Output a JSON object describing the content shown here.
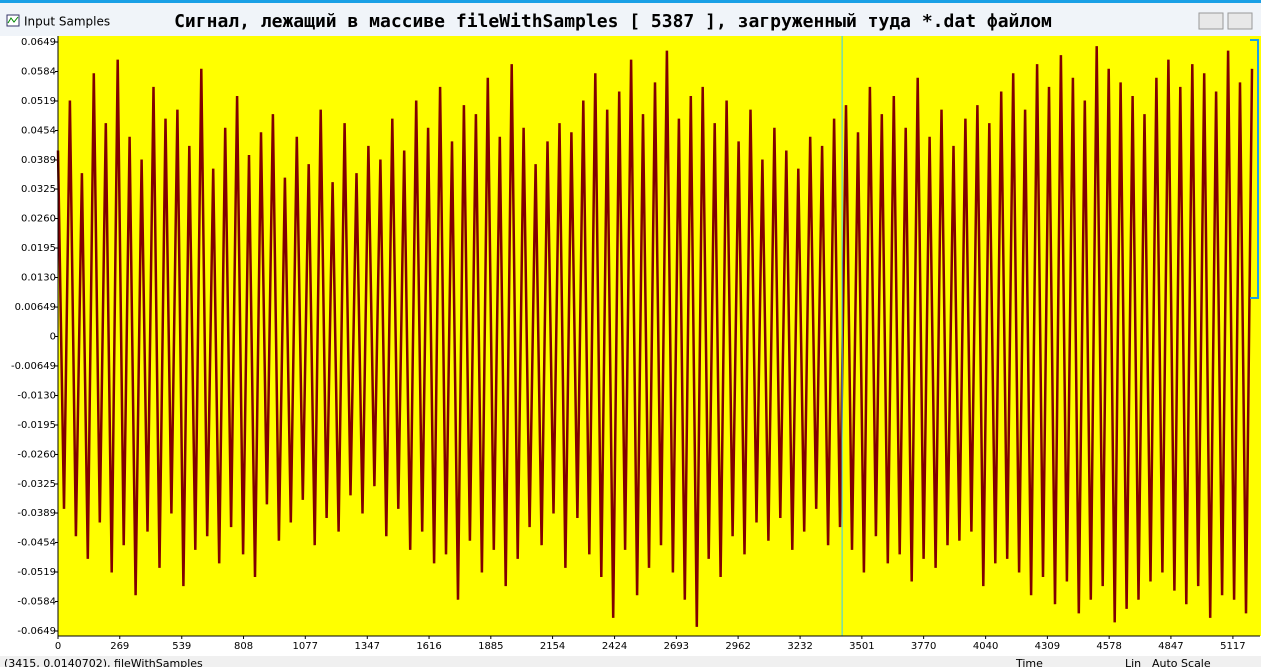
{
  "window": {
    "caption": "Input Samples"
  },
  "chart_data": {
    "type": "line",
    "title": "Сигнал, лежащий в массиве fileWithSamples [ 5387 ], загруженный туда *.dat файлом",
    "x": [
      0,
      26,
      52,
      78,
      104,
      130,
      156,
      182,
      208,
      234,
      260,
      286,
      312,
      338,
      364,
      390,
      416,
      442,
      468,
      494,
      520,
      546,
      572,
      598,
      624,
      650,
      676,
      702,
      728,
      754,
      780,
      806,
      832,
      858,
      884,
      910,
      936,
      962,
      988,
      1014,
      1040,
      1066,
      1092,
      1118,
      1144,
      1170,
      1196,
      1222,
      1248,
      1274,
      1300,
      1326,
      1352,
      1378,
      1404,
      1430,
      1456,
      1482,
      1508,
      1534,
      1560,
      1586,
      1612,
      1638,
      1664,
      1690,
      1716,
      1742,
      1768,
      1794,
      1820,
      1846,
      1872,
      1898,
      1924,
      1950,
      1976,
      2002,
      2028,
      2054,
      2080,
      2106,
      2132,
      2158,
      2184,
      2210,
      2236,
      2262,
      2288,
      2314,
      2340,
      2366,
      2392,
      2418,
      2444,
      2470,
      2496,
      2522,
      2548,
      2574,
      2600,
      2626,
      2652,
      2678,
      2704,
      2730,
      2756,
      2782,
      2808,
      2834,
      2860,
      2886,
      2912,
      2938,
      2964,
      2990,
      3016,
      3042,
      3068,
      3094,
      3120,
      3146,
      3172,
      3198,
      3224,
      3250,
      3276,
      3302,
      3328,
      3354,
      3380,
      3406,
      3432,
      3458,
      3484,
      3510,
      3536,
      3562,
      3588,
      3614,
      3640,
      3666,
      3692,
      3718,
      3744,
      3770,
      3796,
      3822,
      3848,
      3874,
      3900,
      3926,
      3952,
      3978,
      4004,
      4030,
      4056,
      4082,
      4108,
      4134,
      4160,
      4186,
      4212,
      4238,
      4264,
      4290,
      4316,
      4342,
      4368,
      4394,
      4420,
      4446,
      4472,
      4498,
      4524,
      4550,
      4576,
      4602,
      4628,
      4654,
      4680,
      4706,
      4732,
      4758,
      4784,
      4810,
      4836,
      4862,
      4888,
      4914,
      4940,
      4966,
      4992,
      5018,
      5044,
      5070,
      5096,
      5122,
      5148,
      5174,
      5200
    ],
    "series": [
      {
        "name": "fileWithSamples",
        "color": "#800000",
        "values": [
          0.041,
          -0.038,
          0.052,
          -0.044,
          0.036,
          -0.049,
          0.058,
          -0.041,
          0.047,
          -0.052,
          0.061,
          -0.046,
          0.044,
          -0.057,
          0.039,
          -0.043,
          0.055,
          -0.051,
          0.048,
          -0.039,
          0.05,
          -0.055,
          0.042,
          -0.047,
          0.059,
          -0.044,
          0.037,
          -0.05,
          0.046,
          -0.042,
          0.053,
          -0.048,
          0.04,
          -0.053,
          0.045,
          -0.037,
          0.049,
          -0.045,
          0.035,
          -0.041,
          0.044,
          -0.036,
          0.038,
          -0.046,
          0.05,
          -0.04,
          0.034,
          -0.043,
          0.047,
          -0.035,
          0.036,
          -0.039,
          0.042,
          -0.033,
          0.039,
          -0.044,
          0.048,
          -0.038,
          0.041,
          -0.047,
          0.052,
          -0.043,
          0.046,
          -0.05,
          0.055,
          -0.048,
          0.043,
          -0.058,
          0.051,
          -0.045,
          0.049,
          -0.052,
          0.057,
          -0.047,
          0.044,
          -0.055,
          0.06,
          -0.049,
          0.046,
          -0.042,
          0.038,
          -0.046,
          0.043,
          -0.039,
          0.047,
          -0.051,
          0.045,
          -0.04,
          0.052,
          -0.048,
          0.058,
          -0.053,
          0.05,
          -0.062,
          0.054,
          -0.047,
          0.061,
          -0.057,
          0.049,
          -0.051,
          0.056,
          -0.046,
          0.063,
          -0.052,
          0.048,
          -0.058,
          0.053,
          -0.064,
          0.055,
          -0.049,
          0.047,
          -0.053,
          0.052,
          -0.044,
          0.043,
          -0.048,
          0.05,
          -0.041,
          0.039,
          -0.045,
          0.046,
          -0.04,
          0.041,
          -0.047,
          0.037,
          -0.043,
          0.044,
          -0.038,
          0.042,
          -0.046,
          0.048,
          -0.042,
          0.051,
          -0.047,
          0.045,
          -0.052,
          0.055,
          -0.044,
          0.049,
          -0.05,
          0.053,
          -0.048,
          0.046,
          -0.054,
          0.057,
          -0.049,
          0.044,
          -0.051,
          0.05,
          -0.046,
          0.042,
          -0.045,
          0.048,
          -0.043,
          0.051,
          -0.055,
          0.047,
          -0.05,
          0.054,
          -0.049,
          0.058,
          -0.052,
          0.05,
          -0.057,
          0.06,
          -0.053,
          0.055,
          -0.059,
          0.062,
          -0.054,
          0.057,
          -0.061,
          0.052,
          -0.058,
          0.064,
          -0.055,
          0.059,
          -0.063,
          0.056,
          -0.06,
          0.053,
          -0.058,
          0.049,
          -0.054,
          0.057,
          -0.052,
          0.061,
          -0.056,
          0.055,
          -0.059,
          0.06,
          -0.055,
          0.058,
          -0.062,
          0.054,
          -0.057,
          0.063,
          -0.058,
          0.056,
          -0.061,
          0.059
        ]
      }
    ],
    "xlim": [
      0,
      5235
    ],
    "ylim": [
      -0.0649,
      0.0649
    ],
    "xticks": [
      0,
      269,
      539,
      808,
      1077,
      1347,
      1616,
      1885,
      2154,
      2424,
      2693,
      2962,
      3232,
      3501,
      3770,
      4040,
      4309,
      4578,
      4847,
      5117
    ],
    "yticks": [
      0.0649,
      0.0584,
      0.0519,
      0.0454,
      0.0389,
      0.0325,
      {
        "value": 0.026,
        "label": "0.0260"
      },
      0.0195,
      {
        "value": 0.013,
        "label": "0.0130"
      },
      0.00649,
      0,
      -0.00649,
      {
        "value": -0.013,
        "label": "-0.0130"
      },
      -0.0195,
      {
        "value": -0.026,
        "label": "-0.0260"
      },
      -0.0325,
      -0.0389,
      -0.0454,
      -0.0519,
      -0.0584,
      -0.0649
    ],
    "background": "#ffff00",
    "cursor_x": 3415,
    "cursor_color": "#33ccff"
  },
  "status": {
    "position": "(3415, 0.0140702), fileWithSamples",
    "axis_mode": "Time",
    "scale_mode": "Lin",
    "auto_scale": "Auto Scale"
  }
}
